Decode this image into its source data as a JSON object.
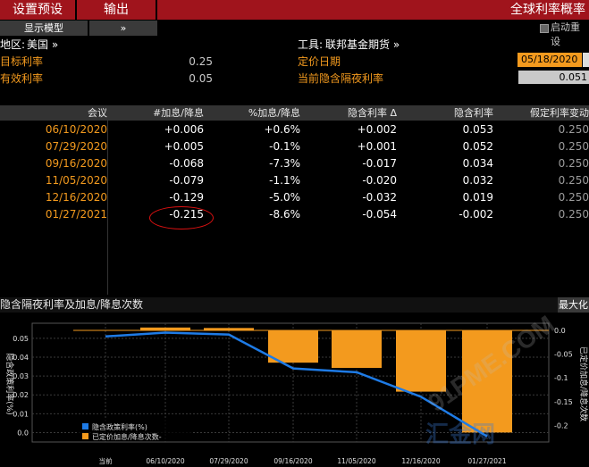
{
  "menu": {
    "preset_label": "设置预设",
    "output_label": "输出",
    "title": "全球利率概率"
  },
  "toolbar": {
    "display_model_label": "显示模型",
    "chevrons": "»",
    "autorun_label": "启动重设"
  },
  "info": {
    "region_label": "地区:",
    "region_value": "美国 »",
    "instrument_label": "工具:",
    "instrument_value": "联邦基金期货 »",
    "target_rate_label": "目标利率",
    "target_rate_value": "0.25",
    "effective_rate_label": "有效利率",
    "effective_rate_value": "0.05",
    "pricing_date_label": "定价日期",
    "pricing_date_value": "05/18/2020",
    "implied_overnight_label": "当前隐含隔夜利率",
    "implied_overnight_value": "0.051"
  },
  "table": {
    "columns": [
      "会议",
      "#加息/降息",
      "%加息/降息",
      "隐含利率 Δ",
      "隐含利率",
      "假定利率变动"
    ],
    "rows": [
      {
        "meeting": "06/10/2020",
        "num": "+0.006",
        "pct": "+0.6%",
        "delta": "+0.002",
        "implied": "0.053",
        "assumed": "0.250"
      },
      {
        "meeting": "07/29/2020",
        "num": "+0.005",
        "pct": "-0.1%",
        "delta": "+0.001",
        "implied": "0.052",
        "assumed": "0.250"
      },
      {
        "meeting": "09/16/2020",
        "num": "-0.068",
        "pct": "-7.3%",
        "delta": "-0.017",
        "implied": "0.034",
        "assumed": "0.250"
      },
      {
        "meeting": "11/05/2020",
        "num": "-0.079",
        "pct": "-1.1%",
        "delta": "-0.020",
        "implied": "0.032",
        "assumed": "0.250"
      },
      {
        "meeting": "12/16/2020",
        "num": "-0.129",
        "pct": "-5.0%",
        "delta": "-0.032",
        "implied": "0.019",
        "assumed": "0.250"
      },
      {
        "meeting": "01/27/2021",
        "num": "-0.215",
        "pct": "-8.6%",
        "delta": "-0.054",
        "implied": "-0.002",
        "assumed": "0.250"
      }
    ]
  },
  "chart_panel": {
    "title": "隐含隔夜利率及加息/降息次数",
    "maximize_label": "最大化",
    "watermark_text": "91PME.COM",
    "watermark_sub": "汇金网"
  },
  "chart_data": {
    "type": "bar",
    "categories": [
      "当前",
      "06/10/2020",
      "07/29/2020",
      "09/16/2020",
      "11/05/2020",
      "12/16/2020",
      "01/27/2021"
    ],
    "series": [
      {
        "name": "隐含政策利率(%)",
        "type": "line",
        "axis": "left",
        "color": "#1e7be6",
        "values": [
          0.051,
          0.053,
          0.052,
          0.034,
          0.032,
          0.019,
          -0.002
        ]
      },
      {
        "name": "已定价加息/降息次数-",
        "type": "bar",
        "axis": "right",
        "color": "#f39a1e",
        "values": [
          0.0,
          0.006,
          0.005,
          -0.068,
          -0.079,
          -0.129,
          -0.215
        ]
      }
    ],
    "left_axis": {
      "label": "隐含政策利率(%)",
      "ticks": [
        "0.05",
        "0.04",
        "0.03",
        "0.02",
        "0.01",
        "0.0"
      ],
      "ylim": [
        -0.005,
        0.058
      ]
    },
    "right_axis": {
      "label": "已定价加息/降息次数",
      "ticks": [
        "0.0",
        "-0.05",
        "-0.1",
        "-0.15",
        "-0.2"
      ],
      "ylim": [
        -0.235,
        0.015
      ]
    },
    "grid": true,
    "legend": "bottom-left"
  }
}
